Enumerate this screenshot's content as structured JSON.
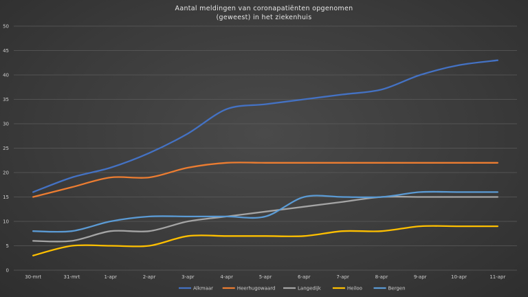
{
  "chart_data": {
    "type": "line",
    "title_lines": [
      "Aantal meldingen van coronapatiënten opgenomen",
      "(geweest) in het ziekenhuis"
    ],
    "xlabel": "",
    "ylabel": "",
    "categories": [
      "30-mrt",
      "31-mrt",
      "1-apr",
      "2-apr",
      "3-apr",
      "4-apr",
      "5-apr",
      "6-apr",
      "7-apr",
      "8-apr",
      "9-apr",
      "10-apr",
      "11-apr"
    ],
    "ylim": [
      0,
      50
    ],
    "yticks": [
      0,
      5,
      10,
      15,
      20,
      25,
      30,
      35,
      40,
      45,
      50
    ],
    "grid": true,
    "legend_position": "bottom",
    "series": [
      {
        "name": "Alkmaar",
        "color": "#4472c4",
        "values": [
          16,
          19,
          21,
          24,
          28,
          33,
          34,
          35,
          36,
          37,
          40,
          42,
          43
        ]
      },
      {
        "name": "Heerhugowaard",
        "color": "#ed7d31",
        "values": [
          15,
          17,
          19,
          19,
          21,
          22,
          22,
          22,
          22,
          22,
          22,
          22,
          22
        ]
      },
      {
        "name": "Langedijk",
        "color": "#a5a5a5",
        "values": [
          6,
          6,
          8,
          8,
          10,
          11,
          12,
          13,
          14,
          15,
          15,
          15,
          15
        ]
      },
      {
        "name": "Heiloo",
        "color": "#ffc000",
        "values": [
          3,
          5,
          5,
          5,
          7,
          7,
          7,
          7,
          8,
          8,
          9,
          9,
          9
        ]
      },
      {
        "name": "Bergen",
        "color": "#5b9bd5",
        "values": [
          8,
          8,
          10,
          11,
          11,
          11,
          11,
          15,
          15,
          15,
          16,
          16,
          16
        ]
      }
    ]
  }
}
